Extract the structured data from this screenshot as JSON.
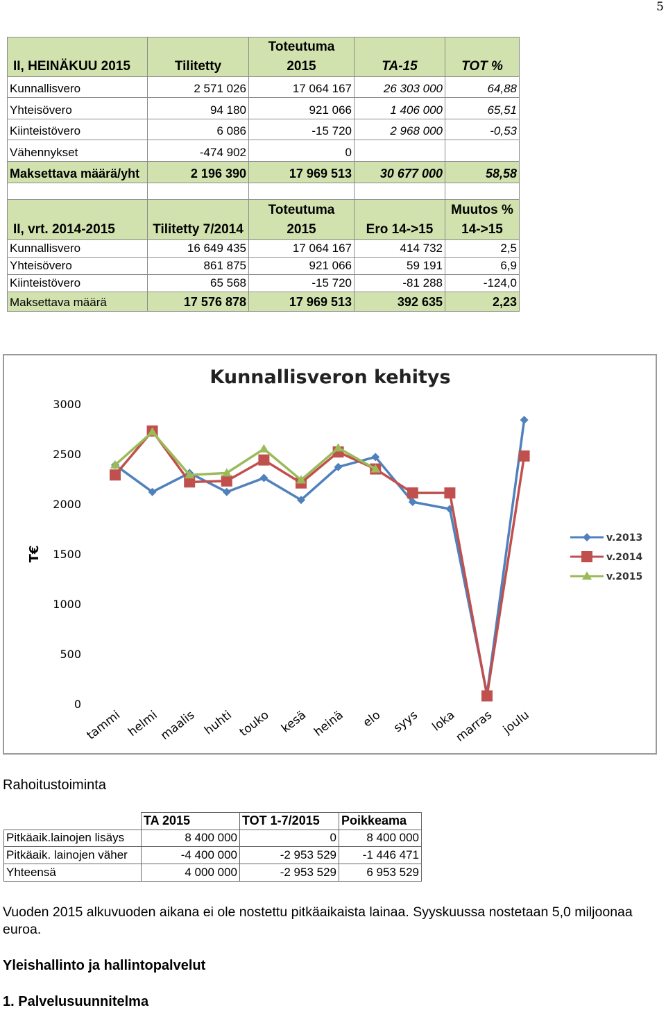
{
  "page_number": "5",
  "table1": {
    "header": [
      [
        "II, HEINÄKUU 2015"
      ],
      [
        "Tilitetty"
      ],
      [
        "Toteutuma",
        "2015"
      ],
      [
        "TA-15"
      ],
      [
        "TOT %"
      ]
    ],
    "rows": [
      [
        "Kunnallisvero",
        "2 571 026",
        "17 064 167",
        "26 303 000",
        "64,88"
      ],
      [
        "Yhteisövero",
        "94 180",
        "921 066",
        "1 406 000",
        "65,51"
      ],
      [
        "Kiinteistövero",
        "6 086",
        "-15 720",
        "2 968 000",
        "-0,53"
      ],
      [
        "Vähennykset",
        "-474 902",
        "0",
        null,
        null
      ],
      [
        "Maksettava määrä/yht",
        "2 196 390",
        "17 969 513",
        "30 677 000",
        "58,58"
      ]
    ]
  },
  "table2": {
    "header": [
      [
        "II, vrt. 2014-2015"
      ],
      [
        "Tilitetty 7/2014"
      ],
      [
        "Toteutuma",
        "2015"
      ],
      [
        "Ero 14->15"
      ],
      [
        "Muutos %",
        "14->15"
      ]
    ],
    "rows": [
      [
        "Kunnallisvero",
        "16 649 435",
        "17 064 167",
        "414 732",
        "2,5"
      ],
      [
        "Yhteisövero",
        "861 875",
        "921 066",
        "59 191",
        "6,9"
      ],
      [
        "Kiinteistövero",
        "65 568",
        "-15 720",
        "-81 288",
        "-124,0"
      ],
      [
        "Maksettava määrä",
        "17 576 878",
        "17 969 513",
        "392 635",
        "2,23"
      ]
    ]
  },
  "chart_data": {
    "type": "line",
    "title": "Kunnallisveron kehitys",
    "y_label": "T€",
    "categories": [
      "tammi",
      "helmi",
      "maalis",
      "huhti",
      "touko",
      "kesä",
      "heinä",
      "elo",
      "syys",
      "loka",
      "marras",
      "joulu"
    ],
    "ylim": [
      0,
      3000
    ],
    "yticks": [
      0,
      500,
      1000,
      1500,
      2000,
      2500,
      3000
    ],
    "legend": "right",
    "series": [
      {
        "name": "v.2013",
        "color": "#4f81bd",
        "marker": "diamond",
        "values": [
          2390,
          2120,
          2310,
          2120,
          2260,
          2040,
          2370,
          2470,
          2020,
          1950,
          100,
          2840
        ]
      },
      {
        "name": "v.2014",
        "color": "#c0504d",
        "marker": "square",
        "values": [
          2290,
          2730,
          2220,
          2230,
          2440,
          2210,
          2520,
          2350,
          2110,
          2110,
          80,
          2480
        ]
      },
      {
        "name": "v.2015",
        "color": "#9bbb59",
        "marker": "triangle",
        "values": [
          2390,
          2720,
          2290,
          2310,
          2550,
          2240,
          2560,
          2350,
          null,
          null,
          null,
          null
        ]
      }
    ]
  },
  "section_title": "Rahoitustoiminta",
  "table3": {
    "header": [
      null,
      "TA 2015",
      "TOT 1-7/2015",
      "Poikkeama"
    ],
    "rows": [
      [
        "Pitkäaik.lainojen lisäys",
        "8 400 000",
        "0",
        "8 400 000"
      ],
      [
        "Pitkäaik. lainojen väher",
        "-4 400 000",
        "-2 953 529",
        "-1 446 471"
      ],
      [
        "Yhteensä",
        "4 000 000",
        "-2 953 529",
        "6 953 529"
      ]
    ]
  },
  "paragraph": "Vuoden 2015 alkuvuoden aikana ei ole nostettu pitkäaikaista lainaa. Syyskuussa nostetaan 5,0 miljoonaa euroa.",
  "heading1": "Yleishallinto ja hallintopalvelut",
  "heading2": "1. Palvelusuunnitelma"
}
